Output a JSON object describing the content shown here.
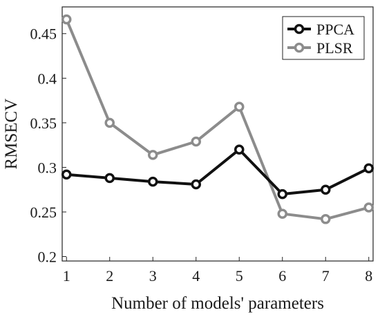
{
  "chart_data": {
    "type": "line",
    "xlabel": "Number of models' parameters",
    "ylabel": "RMSECV",
    "xlim": [
      0.9,
      8.1
    ],
    "ylim": [
      0.195,
      0.48
    ],
    "x_ticks": [
      1,
      2,
      3,
      4,
      5,
      6,
      7,
      8
    ],
    "y_ticks": [
      0.2,
      0.25,
      0.3,
      0.35,
      0.4,
      0.45
    ],
    "y_tick_labels": [
      "0.2",
      "0.25",
      "0.3",
      "0.35",
      "0.4",
      "0.45"
    ],
    "legend_position": "top-right",
    "grid": false,
    "x": [
      1,
      2,
      3,
      4,
      5,
      6,
      7,
      8
    ],
    "series": [
      {
        "name": "PPCA",
        "color": "#111111",
        "values": [
          0.292,
          0.288,
          0.284,
          0.281,
          0.32,
          0.27,
          0.275,
          0.299
        ]
      },
      {
        "name": "PLSR",
        "color": "#8c8c8c",
        "values": [
          0.466,
          0.35,
          0.314,
          0.329,
          0.368,
          0.248,
          0.242,
          0.255
        ]
      }
    ]
  }
}
